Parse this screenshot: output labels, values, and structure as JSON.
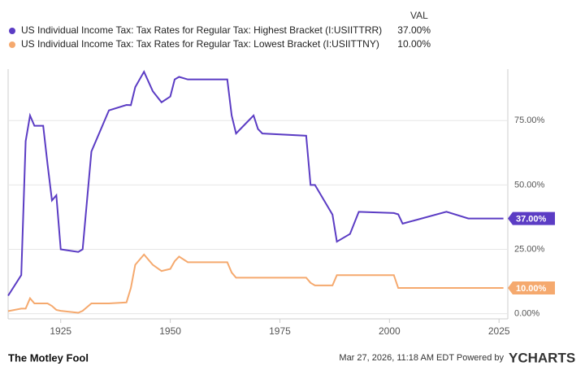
{
  "chart_data": {
    "type": "line",
    "legend_header": "VAL",
    "x": [
      1913,
      1916,
      1917,
      1918,
      1919,
      1921,
      1922,
      1923,
      1924,
      1925,
      1929,
      1930,
      1932,
      1936,
      1940,
      1941,
      1942,
      1944,
      1946,
      1948,
      1950,
      1951,
      1952,
      1954,
      1963,
      1964,
      1965,
      1968,
      1969,
      1970,
      1971,
      1981,
      1982,
      1983,
      1987,
      1988,
      1991,
      1993,
      2001,
      2002,
      2003,
      2013,
      2018,
      2026
    ],
    "series": [
      {
        "name": "US Individual Income Tax: Tax Rates for Regular Tax: Highest Bracket (I:USIITTRR)",
        "color": "#5b3cc4",
        "values": [
          7,
          15,
          67,
          77,
          73,
          73,
          58,
          44,
          46,
          25,
          24,
          25,
          63,
          79,
          81.1,
          81,
          88,
          94,
          86.45,
          82.13,
          84.36,
          91,
          92,
          91,
          91,
          77,
          70,
          75.25,
          77,
          71.75,
          70,
          69.13,
          50,
          50,
          38.5,
          28,
          31,
          39.6,
          39.1,
          38.6,
          35,
          39.6,
          37,
          37
        ],
        "latest_value": 37,
        "latest_label": "37.00%"
      },
      {
        "name": "US Individual Income Tax: Tax Rates for Regular Tax: Lowest Bracket (I:USIITTNY)",
        "color": "#f5a96e",
        "values": [
          1,
          2,
          2,
          6,
          4,
          4,
          4,
          3,
          1.5,
          1.125,
          0.375,
          1.125,
          4,
          4,
          4.4,
          10,
          19,
          23,
          19,
          16.6,
          17.4,
          20.4,
          22.2,
          20,
          20,
          16,
          14,
          14,
          14,
          14,
          14,
          14,
          12,
          11,
          11,
          15,
          15,
          15,
          15,
          10,
          10,
          10,
          10,
          10
        ],
        "latest_value": 10,
        "latest_label": "10.00%"
      }
    ],
    "xlim": [
      1913,
      2027
    ],
    "xticks": [
      1925,
      1950,
      1975,
      2000,
      2025
    ],
    "ylim": [
      -2,
      95
    ],
    "yticks": [
      {
        "value": 0,
        "label": "0.00%"
      },
      {
        "value": 25,
        "label": "25.00%"
      },
      {
        "value": 50,
        "label": "50.00%"
      },
      {
        "value": 75,
        "label": "75.00%"
      }
    ],
    "grid": true,
    "footer": {
      "brand": "The Motley Fool",
      "timestamp": "Mar 27, 2026, 11:18 AM EDT Powered by",
      "provider": "YCHARTS"
    }
  }
}
